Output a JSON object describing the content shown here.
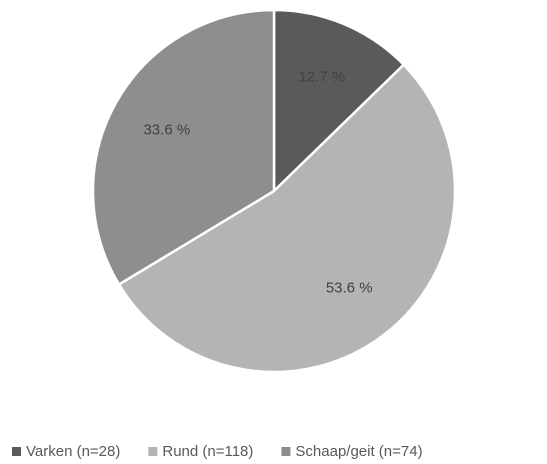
{
  "chart_data": {
    "type": "pie",
    "categories": [
      "Varken (n=28)",
      "Rund (n=118)",
      "Schaap/geit (n=74)"
    ],
    "values": [
      12.7,
      53.6,
      33.6
    ],
    "value_labels": [
      "12.7 %",
      "53.6 %",
      "33.6 %"
    ],
    "colors": [
      "#5a5a5a",
      "#b4b4b4",
      "#8e8e8e"
    ],
    "legend": "bottom"
  }
}
